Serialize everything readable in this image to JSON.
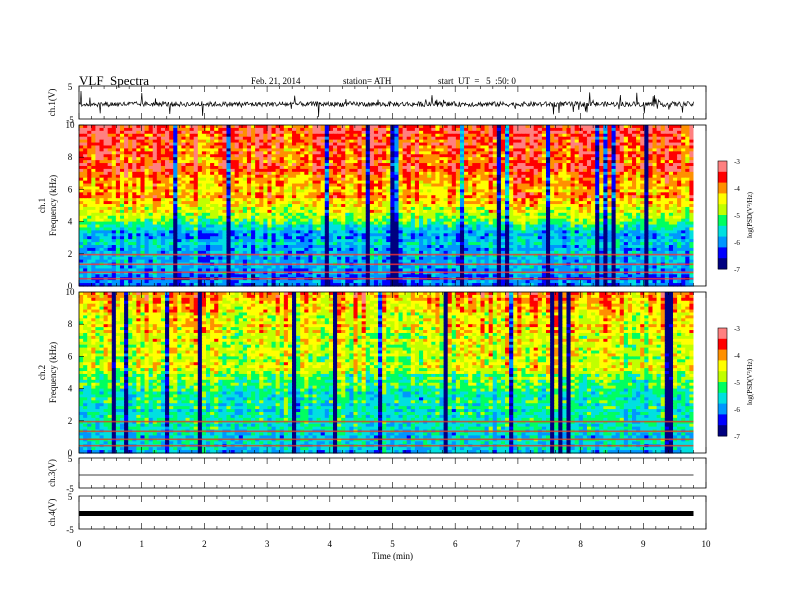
{
  "header": {
    "title": "VLF  Spectra",
    "date": "Feb. 21, 2014",
    "station": "station= ATH",
    "start_ut": "start  UT  =   5  :50: 0"
  },
  "chart_data": [
    {
      "type": "line",
      "panel": "ch.1 waveform",
      "ylabel": "ch.1(V)",
      "yticks": [
        "5",
        "-5"
      ],
      "ylim": [
        -5,
        5
      ],
      "xlim": [
        0,
        10
      ],
      "description_values": {
        "baseline": -0.5,
        "amplitude": 1.5
      }
    },
    {
      "type": "heatmap",
      "panel": "ch.1 spectrogram",
      "ylabel": "Frequency (kHz)",
      "channel_label": "ch.1",
      "yticks": [
        "0",
        "2",
        "4",
        "6",
        "8",
        "10"
      ],
      "ylim": [
        0,
        10
      ],
      "xlim": [
        0,
        9.8
      ],
      "colorbar": {
        "label": "log(PSD(V²/Hz)",
        "ticks": [
          "-3",
          "-4",
          "-5",
          "-6",
          "-7"
        ],
        "range": [
          -7,
          -3
        ]
      }
    },
    {
      "type": "heatmap",
      "panel": "ch.2 spectrogram",
      "ylabel": "Frequency (kHz)",
      "channel_label": "ch.2",
      "yticks": [
        "0",
        "2",
        "4",
        "6",
        "8",
        "10"
      ],
      "ylim": [
        0,
        10
      ],
      "xlim": [
        0,
        9.8
      ],
      "colorbar": {
        "label": "log(PSD(V²/Hz)",
        "ticks": [
          "-3",
          "-4",
          "-5",
          "-6",
          "-7"
        ],
        "range": [
          -7,
          -3
        ]
      }
    },
    {
      "type": "line",
      "panel": "ch.3 waveform",
      "ylabel": "ch.3(V)",
      "yticks": [
        "5",
        "-5"
      ],
      "ylim": [
        -5,
        5
      ],
      "xlim": [
        0,
        9.8
      ],
      "values_constant": 0
    },
    {
      "type": "line",
      "panel": "ch.4 waveform",
      "ylabel": "ch.4(V)",
      "yticks": [
        "5",
        "-5"
      ],
      "ylim": [
        -5,
        5
      ],
      "xlim": [
        0,
        9.8
      ],
      "values_constant": 0
    }
  ],
  "xaxis": {
    "label": "Time  (min)",
    "ticks": [
      "0",
      "1",
      "2",
      "3",
      "4",
      "5",
      "6",
      "7",
      "8",
      "9",
      "10"
    ],
    "range": [
      0,
      10
    ]
  },
  "colors": {
    "colormap": [
      "#000080",
      "#0000ff",
      "#0096ff",
      "#00e0e0",
      "#00ff60",
      "#c0ff00",
      "#ffff00",
      "#ff9000",
      "#ff0000",
      "#ff8080",
      "#ffffff"
    ]
  }
}
